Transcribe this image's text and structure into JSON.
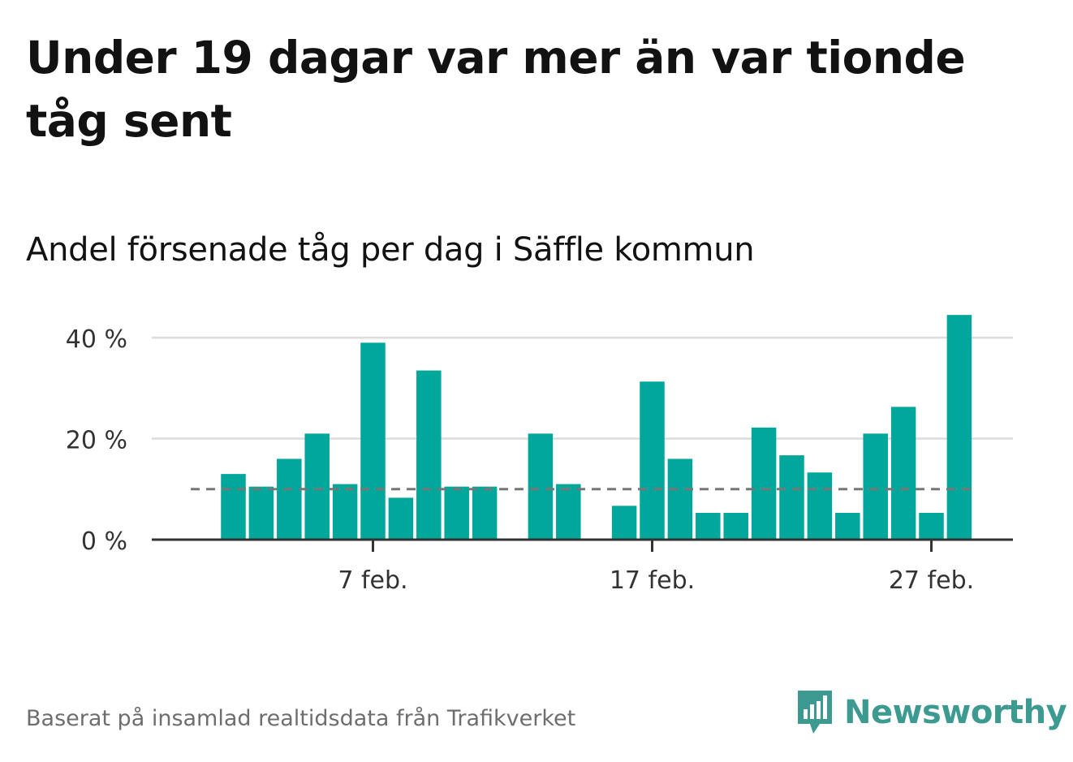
{
  "title": "Under 19 dagar var mer än var tionde tåg sent",
  "subtitle": "Andel försenade tåg per dag i Säffle kommun",
  "source": "Baserat på insamlad realtidsdata från Trafikverket",
  "logo_text": "Newsworthy",
  "colors": {
    "bar": "#00a79a",
    "grid": "#dcdcdc",
    "axis": "#333333",
    "reference_line": "#777777",
    "logo": "#3d9a90"
  },
  "chart_data": {
    "type": "bar",
    "xlabel": "",
    "ylabel": "",
    "categories": [
      "2 feb.",
      "3 feb.",
      "4 feb.",
      "5 feb.",
      "6 feb.",
      "7 feb.",
      "8 feb.",
      "9 feb.",
      "10 feb.",
      "11 feb.",
      "12 feb.",
      "13 feb.",
      "14 feb.",
      "15 feb.",
      "16 feb.",
      "17 feb.",
      "18 feb.",
      "19 feb.",
      "20 feb.",
      "21 feb.",
      "22 feb.",
      "23 feb.",
      "24 feb.",
      "25 feb.",
      "26 feb.",
      "27 feb.",
      "28 feb."
    ],
    "values": [
      13,
      10.5,
      16,
      21,
      11,
      39,
      8.3,
      33.5,
      10.5,
      10.5,
      null,
      21,
      11,
      null,
      6.7,
      31.3,
      16,
      5.3,
      5.3,
      22.2,
      16.7,
      13.3,
      5.3,
      21,
      26.3,
      5.3,
      44.5
    ],
    "unit": "%",
    "ylim": [
      0,
      45
    ],
    "yticks": [
      0,
      20,
      40
    ],
    "ytick_labels": [
      "0 %",
      "20 %",
      "40 %"
    ],
    "xtick_labels": [
      "7 feb.",
      "17 feb.",
      "27 feb."
    ],
    "xtick_positions": [
      5,
      15,
      25
    ],
    "reference_line": 10,
    "grid": true
  }
}
